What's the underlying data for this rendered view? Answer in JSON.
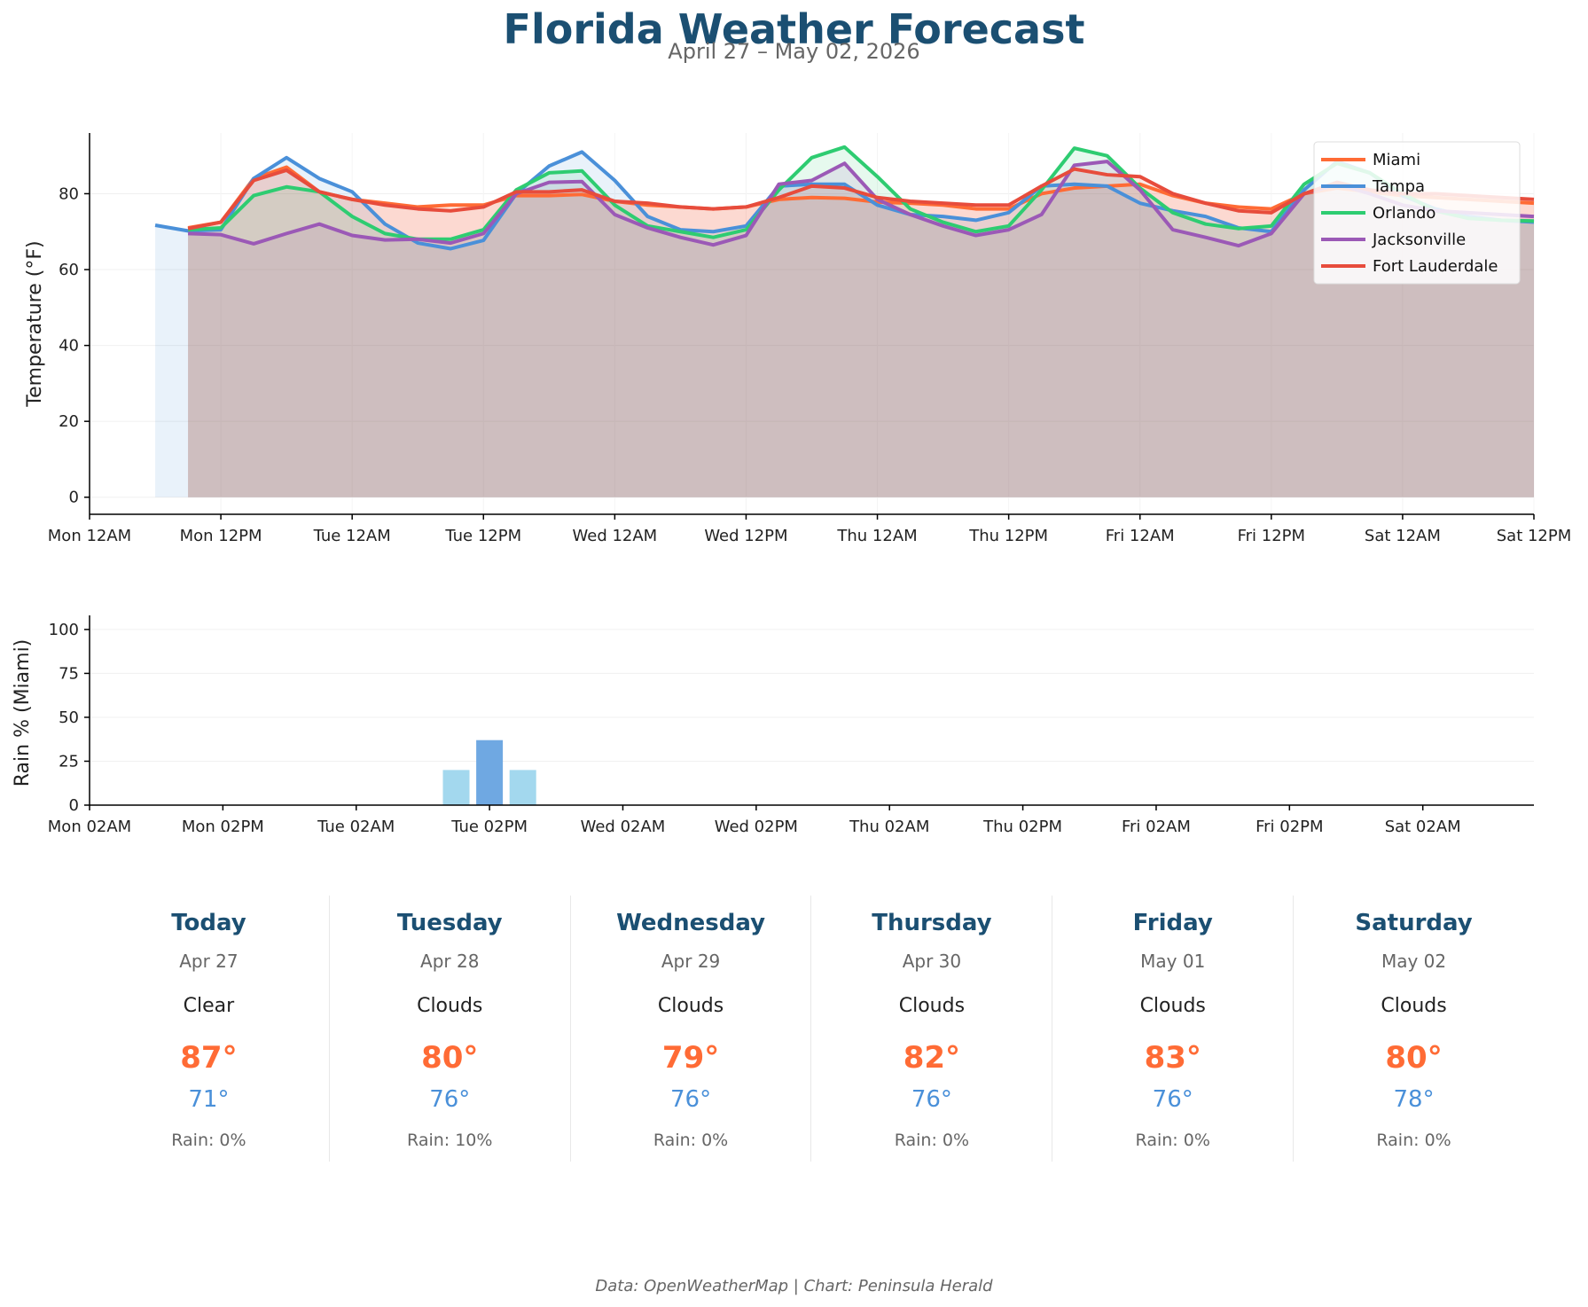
{
  "header": {
    "title": "Florida Weather Forecast",
    "subtitle": "April 27 – May 02, 2026"
  },
  "chart_data": [
    {
      "type": "line",
      "ylabel": "Temperature (°F)",
      "xlabel": "",
      "x_tick_labels": [
        "Mon 12AM",
        "Mon 12PM",
        "Tue 12AM",
        "Tue 12PM",
        "Wed 12AM",
        "Wed 12PM",
        "Thu 12AM",
        "Thu 12PM",
        "Fri 12AM",
        "Fri 12PM",
        "Sat 12AM",
        "Sat 12PM"
      ],
      "x_tick_hours": [
        0,
        12,
        24,
        36,
        48,
        60,
        72,
        84,
        96,
        108,
        120,
        132
      ],
      "y_ticks": [
        0,
        20,
        40,
        60,
        80
      ],
      "ylim": [
        -4.5,
        96
      ],
      "xlim_hours": [
        0,
        132
      ],
      "legend_position": "top-right",
      "fill_under": true,
      "series": [
        {
          "name": "Miami",
          "color": "#ff6b35",
          "x": [
            9,
            12,
            15,
            18,
            21,
            24,
            27,
            30,
            33,
            36,
            39,
            42,
            45,
            48,
            51,
            54,
            57,
            60,
            63,
            66,
            69,
            72,
            75,
            78,
            81,
            84,
            87,
            90,
            93,
            96,
            99,
            102,
            105,
            108,
            111,
            114,
            117,
            120,
            123,
            126,
            129,
            132
          ],
          "y": [
            71,
            72.5,
            84,
            87,
            80.5,
            78.5,
            77.5,
            76.5,
            77,
            77,
            79.5,
            79.5,
            79.8,
            78,
            77,
            76.5,
            76,
            76.5,
            78.5,
            79,
            78.8,
            77.8,
            77.5,
            77,
            76,
            76,
            80,
            81.5,
            82,
            82.5,
            79.5,
            77.5,
            76.5,
            76,
            80,
            81.5,
            80.5,
            79.5,
            79,
            78.5,
            78,
            77.5
          ]
        },
        {
          "name": "Tampa",
          "color": "#4a90d9",
          "x": [
            6,
            9,
            12,
            15,
            18,
            21,
            24,
            27,
            30,
            33,
            36,
            39,
            42,
            45,
            48,
            51,
            54,
            57,
            60,
            63,
            66,
            69,
            72,
            75,
            78,
            81,
            84,
            87,
            90,
            93,
            96,
            99,
            102,
            105,
            108,
            111,
            114,
            117,
            120,
            123,
            126,
            129,
            132
          ],
          "y": [
            71.7,
            70.2,
            70.5,
            84,
            89.5,
            84,
            80.5,
            72,
            67,
            65.5,
            67.7,
            80,
            87.3,
            91,
            83.5,
            74,
            70.5,
            70,
            71.5,
            82,
            82.5,
            82.5,
            77,
            74.5,
            74,
            73,
            75,
            82,
            82.5,
            82,
            77.5,
            75.5,
            74,
            71,
            70,
            81,
            88.5,
            85.5,
            79.5,
            76,
            74,
            73,
            72.5
          ]
        },
        {
          "name": "Orlando",
          "color": "#2ecc71",
          "x": [
            9,
            12,
            15,
            18,
            21,
            24,
            27,
            30,
            33,
            36,
            39,
            42,
            45,
            48,
            51,
            54,
            57,
            60,
            63,
            66,
            69,
            72,
            75,
            78,
            81,
            84,
            87,
            90,
            93,
            96,
            99,
            102,
            105,
            108,
            111,
            114,
            117,
            120,
            123,
            126,
            129,
            132
          ],
          "y": [
            70.5,
            71,
            79.5,
            81.8,
            80.5,
            74,
            69.5,
            68,
            68,
            70.5,
            81,
            85.5,
            86,
            77,
            71.5,
            70,
            68.5,
            70.5,
            81,
            89.5,
            92.3,
            84.5,
            76,
            72.5,
            70,
            71.5,
            81,
            92,
            90,
            81.5,
            75,
            72,
            70.8,
            71.5,
            82.5,
            88,
            85.5,
            80,
            75.5,
            73.5,
            73,
            72.8
          ]
        },
        {
          "name": "Jacksonville",
          "color": "#9b59b6",
          "x": [
            9,
            12,
            15,
            18,
            21,
            24,
            27,
            30,
            33,
            36,
            39,
            42,
            45,
            48,
            51,
            54,
            57,
            60,
            63,
            66,
            69,
            72,
            75,
            78,
            81,
            84,
            87,
            90,
            93,
            96,
            99,
            102,
            105,
            108,
            111,
            114,
            117,
            120,
            123,
            126,
            129,
            132
          ],
          "y": [
            69.5,
            69.2,
            66.8,
            69.5,
            72,
            69,
            67.8,
            68,
            67,
            69.5,
            80,
            83,
            83.2,
            74.5,
            71,
            68.5,
            66.5,
            69,
            82.5,
            83.5,
            88,
            78.5,
            74.5,
            71.5,
            69,
            70.5,
            74.5,
            87.5,
            88.5,
            81,
            70.5,
            68.5,
            66.3,
            69.5,
            80,
            82.5,
            80,
            77,
            75.5,
            75,
            74.5,
            74
          ]
        },
        {
          "name": "Fort Lauderdale",
          "color": "#e74c3c",
          "x": [
            9,
            12,
            15,
            18,
            21,
            24,
            27,
            30,
            33,
            36,
            39,
            42,
            45,
            48,
            51,
            54,
            57,
            60,
            63,
            66,
            69,
            72,
            75,
            78,
            81,
            84,
            87,
            90,
            93,
            96,
            99,
            102,
            105,
            108,
            111,
            114,
            117,
            120,
            123,
            126,
            129,
            132
          ],
          "y": [
            70.8,
            72.5,
            83.5,
            86.2,
            80.5,
            78.5,
            77,
            76,
            75.5,
            76.5,
            80.5,
            80.5,
            81,
            78,
            77.5,
            76.5,
            76,
            76.5,
            79,
            82,
            81.5,
            79,
            78,
            77.5,
            77,
            77,
            82,
            86.5,
            85,
            84.5,
            80,
            77.5,
            75.5,
            75,
            80,
            83,
            81,
            80,
            80,
            79.5,
            79,
            78.5
          ]
        }
      ]
    },
    {
      "type": "bar",
      "ylabel": "Rain % (Miami)",
      "xlabel": "",
      "x_tick_labels": [
        "Mon 02AM",
        "Mon 02PM",
        "Tue 02AM",
        "Tue 02PM",
        "Wed 02AM",
        "Wed 02PM",
        "Thu 02AM",
        "Thu 02PM",
        "Fri 02AM",
        "Fri 02PM",
        "Sat 02AM"
      ],
      "x_tick_hours": [
        2,
        14,
        26,
        38,
        50,
        62,
        74,
        86,
        98,
        110,
        122
      ],
      "y_ticks": [
        0,
        25,
        50,
        75,
        100
      ],
      "ylim": [
        0,
        105
      ],
      "xlim_hours": [
        2,
        132
      ],
      "bars": [
        {
          "hour": 35,
          "value": 20,
          "color": "#a3d8ee"
        },
        {
          "hour": 38,
          "value": 37,
          "color": "#6fa8e2"
        },
        {
          "hour": 41,
          "value": 20,
          "color": "#a3d8ee"
        }
      ]
    }
  ],
  "days": [
    {
      "day": "Today",
      "date": "Apr 27",
      "condition": "Clear",
      "high": "87°",
      "low": "71°",
      "rain": "Rain: 0%"
    },
    {
      "day": "Tuesday",
      "date": "Apr 28",
      "condition": "Clouds",
      "high": "80°",
      "low": "76°",
      "rain": "Rain: 10%"
    },
    {
      "day": "Wednesday",
      "date": "Apr 29",
      "condition": "Clouds",
      "high": "79°",
      "low": "76°",
      "rain": "Rain: 0%"
    },
    {
      "day": "Thursday",
      "date": "Apr 30",
      "condition": "Clouds",
      "high": "82°",
      "low": "76°",
      "rain": "Rain: 0%"
    },
    {
      "day": "Friday",
      "date": "May 01",
      "condition": "Clouds",
      "high": "83°",
      "low": "76°",
      "rain": "Rain: 0%"
    },
    {
      "day": "Saturday",
      "date": "May 02",
      "condition": "Clouds",
      "high": "80°",
      "low": "78°",
      "rain": "Rain: 0%"
    }
  ],
  "footer": {
    "text": "Data: OpenWeatherMap | Chart: Peninsula Herald"
  }
}
